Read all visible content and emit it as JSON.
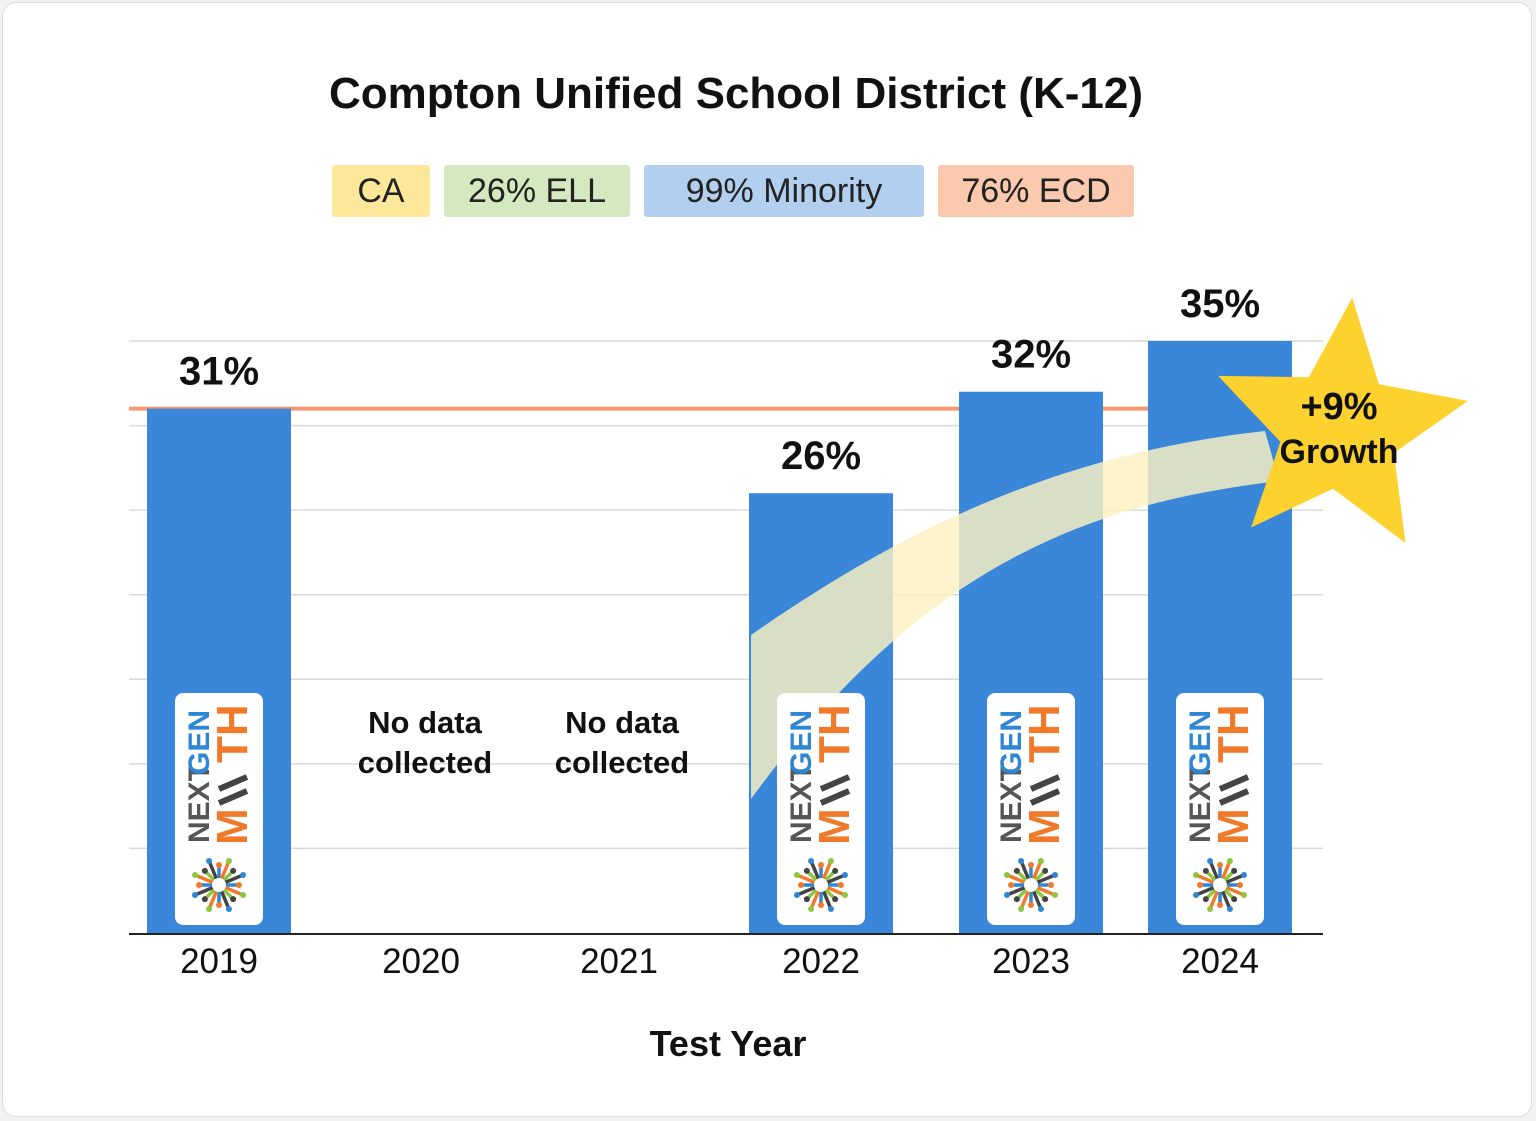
{
  "chart_data": {
    "type": "bar",
    "title": "Compton Unified School District (K-12)",
    "xlabel": "Test Year",
    "ylabel": "",
    "ylim": [
      0,
      35
    ],
    "categories": [
      "2019",
      "2020",
      "2021",
      "2022",
      "2023",
      "2024"
    ],
    "values": [
      31,
      null,
      null,
      26,
      32,
      35
    ],
    "value_labels": [
      "31%",
      "",
      "",
      "26%",
      "32%",
      "35%"
    ],
    "no_data_label": [
      "No data",
      "collected"
    ],
    "reference_line": {
      "value": 31,
      "color": "#f59a72"
    },
    "annotation": {
      "line1": "+9%",
      "line2": "Growth"
    },
    "logo": {
      "word1": "NEXT",
      "word2": "GEN",
      "word3": "M",
      "word4": "TH",
      "alt": "NextGen Math logo"
    },
    "grid": true,
    "bar_color": "#3a86d9"
  },
  "tags": [
    {
      "label": "CA",
      "color": "#fde79a"
    },
    {
      "label": "26% ELL",
      "color": "#d5e9c0"
    },
    {
      "label": "99% Minority",
      "color": "#b2cff0"
    },
    {
      "label": "76% ECD",
      "color": "#fbc9ad"
    }
  ],
  "colors": {
    "star": "#fdd12e",
    "growth_band": "#fdf2c2",
    "axis": "#222222",
    "gridline": "#d9d9d9"
  }
}
